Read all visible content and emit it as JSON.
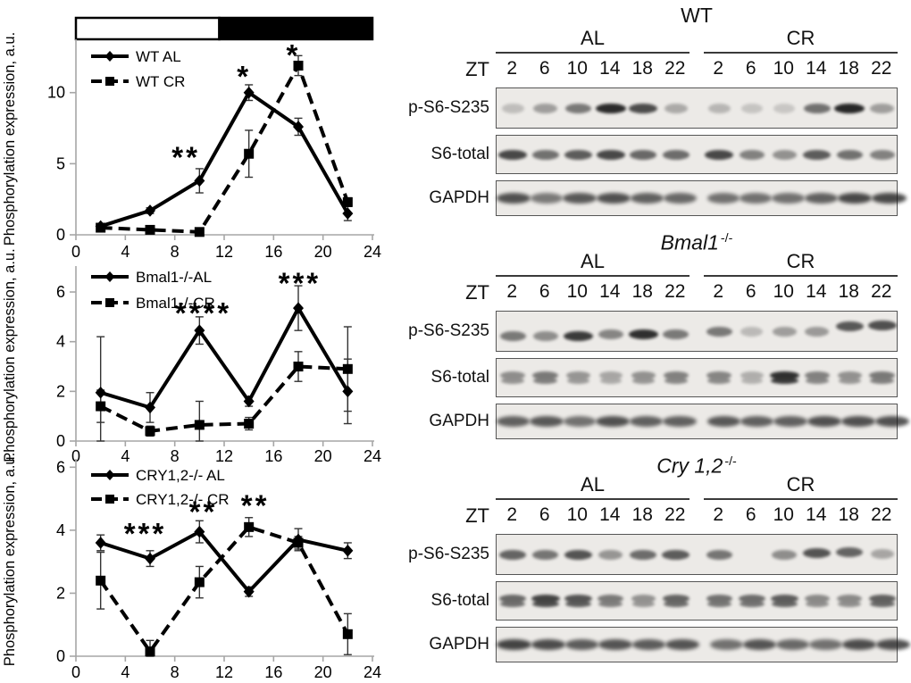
{
  "colors": {
    "line": "#000000",
    "axis": "#a6a6a6",
    "tick_text": "#000000",
    "blot_background": "#eceae7",
    "band": "#1d1d1d",
    "light_bar": "#ffffff",
    "dark_bar": "#000000"
  },
  "chart_data": [
    {
      "type": "line",
      "name": "wt",
      "ylabel": "Phosphorylation expression, a.u.",
      "xlim": [
        0,
        24
      ],
      "xticks": [
        0,
        4,
        8,
        12,
        16,
        20,
        24
      ],
      "ylim": [
        0,
        13.5
      ],
      "yticks": [
        0,
        5,
        10
      ],
      "x": [
        2,
        6,
        10,
        14,
        18,
        22
      ],
      "light_dark_bar": {
        "light_span": [
          0,
          11.6
        ],
        "dark_span": [
          11.6,
          24
        ]
      },
      "series": [
        {
          "name": "WT AL",
          "line": "solid",
          "marker": "diamond",
          "values": [
            0.6,
            1.7,
            3.8,
            10.0,
            7.6,
            1.5
          ],
          "errors": [
            0.2,
            0.2,
            0.85,
            0.55,
            0.6,
            0.5
          ]
        },
        {
          "name": "WT CR",
          "line": "dashed",
          "marker": "square",
          "values": [
            0.5,
            0.35,
            0.2,
            5.7,
            11.9,
            2.3
          ],
          "errors": [
            0.25,
            0.15,
            0.1,
            1.65,
            0.7,
            0.3
          ]
        }
      ],
      "annotations": [
        {
          "text": "**",
          "x": 8.9,
          "y": 5.8
        },
        {
          "text": "*",
          "x": 13.6,
          "y": 11.5
        },
        {
          "text": "*",
          "x": 17.6,
          "y": 13.0
        }
      ]
    },
    {
      "type": "line",
      "name": "bmal1",
      "ylabel": "Phosphorylation expression, a.u.",
      "xlim": [
        0,
        24
      ],
      "xticks": [
        0,
        4,
        8,
        12,
        16,
        20,
        24
      ],
      "ylim": [
        0,
        6.9
      ],
      "yticks": [
        0,
        2,
        4,
        6
      ],
      "x": [
        2,
        6,
        10,
        14,
        18,
        22
      ],
      "series": [
        {
          "name": "Bmal1-/-AL",
          "line": "solid",
          "marker": "diamond",
          "values": [
            1.95,
            1.35,
            4.45,
            1.6,
            5.35,
            2.0
          ],
          "errors": [
            2.25,
            0.6,
            0.55,
            0.2,
            0.9,
            1.3
          ]
        },
        {
          "name": "Bmal1-/-CR",
          "line": "dashed",
          "marker": "square",
          "values": [
            1.4,
            0.4,
            0.65,
            0.7,
            3.0,
            2.9
          ],
          "errors": [
            0.65,
            0.2,
            0.95,
            0.25,
            0.6,
            1.7
          ]
        }
      ],
      "annotations": [
        {
          "text": "****",
          "x": 10.3,
          "y": 5.35
        },
        {
          "text": "***",
          "x": 18.1,
          "y": 6.55
        }
      ]
    },
    {
      "type": "line",
      "name": "cry12",
      "ylabel": "Phosphorylation expression, a.u.",
      "xlim": [
        0,
        24
      ],
      "xticks": [
        0,
        4,
        8,
        12,
        16,
        20,
        24
      ],
      "ylim": [
        0,
        6.15
      ],
      "yticks": [
        0,
        2,
        4,
        6
      ],
      "x": [
        2,
        6,
        10,
        14,
        18,
        22
      ],
      "series": [
        {
          "name": "CRY1,2-/- AL",
          "line": "solid",
          "marker": "diamond",
          "values": [
            3.6,
            3.1,
            3.95,
            2.05,
            3.7,
            3.35
          ],
          "errors": [
            0.25,
            0.25,
            0.35,
            0.15,
            0.35,
            0.25
          ]
        },
        {
          "name": "CRY1,2-/- CR",
          "line": "dashed",
          "marker": "square",
          "values": [
            2.4,
            0.15,
            2.35,
            4.1,
            3.6,
            0.7
          ],
          "errors": [
            0.9,
            0.35,
            0.5,
            0.3,
            0.2,
            0.65
          ]
        }
      ],
      "annotations": [
        {
          "text": "***",
          "x": 5.6,
          "y": 4.05
        },
        {
          "text": "**",
          "x": 10.3,
          "y": 4.75
        },
        {
          "text": "**",
          "x": 14.5,
          "y": 4.95
        }
      ]
    }
  ],
  "blots": {
    "zt_label": "ZT",
    "group_labels": [
      "AL",
      "CR"
    ],
    "lane_labels": [
      "2",
      "6",
      "10",
      "14",
      "18",
      "22",
      "2",
      "6",
      "10",
      "14",
      "18",
      "22"
    ],
    "row_labels": [
      "p-S6-S235",
      "S6-total",
      "GAPDH"
    ],
    "panels": [
      {
        "title": "WT",
        "title_italic": false,
        "title_sup": "",
        "rows": [
          {
            "label": "p-S6-S235",
            "style": "single",
            "intensities": [
              0.08,
              0.28,
              0.5,
              0.97,
              0.78,
              0.2,
              0.12,
              0.04,
              0.02,
              0.55,
              1.0,
              0.28
            ]
          },
          {
            "label": "S6-total",
            "style": "single",
            "intensities": [
              0.8,
              0.55,
              0.68,
              0.8,
              0.6,
              0.58,
              0.8,
              0.45,
              0.35,
              0.68,
              0.55,
              0.45
            ]
          },
          {
            "label": "GAPDH",
            "style": "wide",
            "intensities": [
              0.75,
              0.5,
              0.7,
              0.75,
              0.65,
              0.6,
              0.55,
              0.55,
              0.55,
              0.65,
              0.8,
              0.8
            ]
          }
        ]
      },
      {
        "title": "Bmal1",
        "title_italic": true,
        "title_sup": "-/-",
        "rows": [
          {
            "label": "p-S6-S235",
            "style": "single",
            "intensities": [
              0.5,
              0.38,
              0.88,
              0.42,
              0.95,
              0.5,
              0.5,
              0.1,
              0.28,
              0.3,
              0.7,
              0.75
            ],
            "offsets": [
              5,
              5,
              5,
              3,
              3,
              3,
              0,
              0,
              0,
              0,
              -6,
              -7
            ]
          },
          {
            "label": "S6-total",
            "style": "double",
            "intensities": [
              0.38,
              0.5,
              0.32,
              0.22,
              0.35,
              0.45,
              0.42,
              0.18,
              0.95,
              0.45,
              0.35,
              0.5
            ]
          },
          {
            "label": "GAPDH",
            "style": "wide",
            "intensities": [
              0.65,
              0.7,
              0.55,
              0.75,
              0.65,
              0.65,
              0.7,
              0.65,
              0.65,
              0.75,
              0.75,
              0.75
            ]
          }
        ]
      },
      {
        "title": "Cry 1,2",
        "title_italic": true,
        "title_sup": "-/-",
        "rows": [
          {
            "label": "p-S6-S235",
            "style": "single",
            "intensities": [
              0.62,
              0.52,
              0.72,
              0.32,
              0.58,
              0.68,
              0.52,
              0.0,
              0.38,
              0.72,
              0.62,
              0.22
            ],
            "offsets": [
              0,
              0,
              0,
              0,
              0,
              0,
              0,
              0,
              0,
              -2,
              -3,
              -1
            ]
          },
          {
            "label": "S6-total",
            "style": "double",
            "intensities": [
              0.6,
              0.82,
              0.72,
              0.5,
              0.35,
              0.62,
              0.55,
              0.58,
              0.68,
              0.4,
              0.4,
              0.65
            ]
          },
          {
            "label": "GAPDH",
            "style": "wide",
            "intensities": [
              0.82,
              0.78,
              0.68,
              0.72,
              0.68,
              0.72,
              0.55,
              0.72,
              0.6,
              0.55,
              0.78,
              0.78
            ]
          }
        ]
      }
    ]
  }
}
